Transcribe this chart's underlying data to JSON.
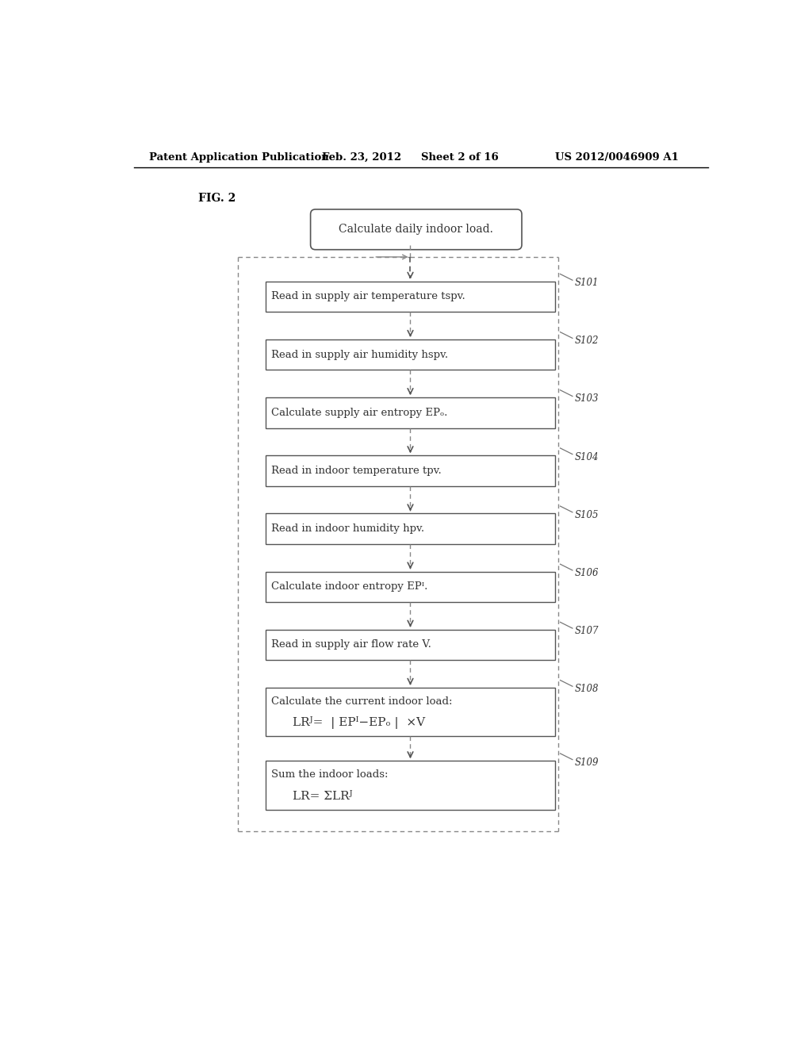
{
  "title_line1": "Patent Application Publication",
  "title_date": "Feb. 23, 2012",
  "title_sheet": "Sheet 2 of 16",
  "title_patent": "US 2012/0046909 A1",
  "fig_label": "FIG. 2",
  "start_box_text": "Calculate daily indoor load.",
  "steps": [
    {
      "label": "S101",
      "line1": "Read in supply air temperature tspv.",
      "line2": null
    },
    {
      "label": "S102",
      "line1": "Read in supply air humidity hspv.",
      "line2": null
    },
    {
      "label": "S103",
      "line1": "Calculate supply air entropy EPₒ.",
      "line2": null
    },
    {
      "label": "S104",
      "line1": "Read in indoor temperature tpv.",
      "line2": null
    },
    {
      "label": "S105",
      "line1": "Read in indoor humidity hpv.",
      "line2": null
    },
    {
      "label": "S106",
      "line1": "Calculate indoor entropy EPᴵ.",
      "line2": null
    },
    {
      "label": "S107",
      "line1": "Read in supply air flow rate V.",
      "line2": null
    },
    {
      "label": "S108",
      "line1": "Calculate the current indoor load:",
      "line2": "LRᴶ=  | EPᴵ−EPₒ |  ×V"
    },
    {
      "label": "S109",
      "line1": "Sum the indoor loads:",
      "line2": "LR= ΣLRᴶ"
    }
  ],
  "bg_color": "#ffffff",
  "box_edge_color": "#555555",
  "text_color": "#333333",
  "arrow_color": "#555555",
  "dashed_color": "#888888",
  "header_color": "#000000"
}
